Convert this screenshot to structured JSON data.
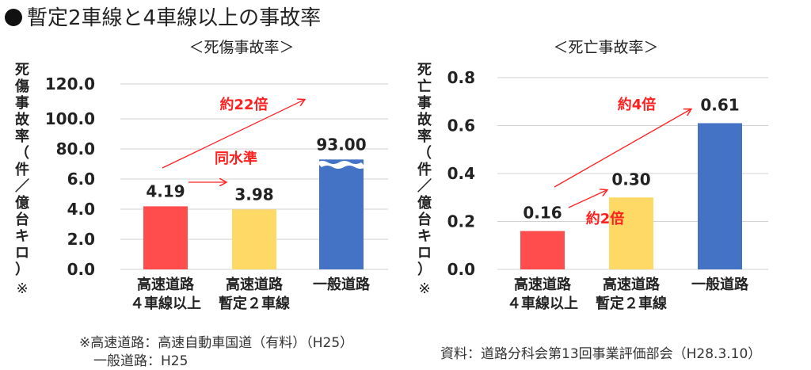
{
  "title": "暫定2車線と4車線以上の事故率",
  "footnote": {
    "line1": "※高速道路：高速自動車国道（有料）（H25）",
    "line2": "一般道路：H25"
  },
  "source": "資料：道路分科会第13回事業評価部会（H28.3.10）",
  "chart_data": [
    {
      "type": "bar",
      "title": "＜死傷事故率＞",
      "ylabel": "死傷事故率（件／億台キロ）",
      "ylabel_note": "※",
      "categories": [
        "高速道路\n４車線以上",
        "高速道路\n暫定２車線",
        "一般道路"
      ],
      "values": [
        4.19,
        3.98,
        93.0
      ],
      "data_labels": [
        "4.19",
        "3.98",
        "93.00"
      ],
      "colors": [
        "#ff4d4d",
        "#ffd966",
        "#4472c4"
      ],
      "yticks": [
        "0.0",
        "2.0",
        "4.0",
        "6.0",
        "80.0",
        "100.0",
        "120.0"
      ],
      "axis_break": true,
      "grid": true,
      "annotations": [
        {
          "text": "同水準",
          "from": "高速道路\n４車線以上",
          "to": "高速道路\n暫定２車線"
        },
        {
          "text": "約22倍",
          "from": "高速道路\n４車線以上",
          "to": "一般道路"
        }
      ]
    },
    {
      "type": "bar",
      "title": "＜死亡事故率＞",
      "ylabel": "死亡事故率（件／億台キロ）",
      "ylabel_note": "※",
      "categories": [
        "高速道路\n４車線以上",
        "高速道路\n暫定２車線",
        "一般道路"
      ],
      "values": [
        0.16,
        0.3,
        0.61
      ],
      "data_labels": [
        "0.16",
        "0.30",
        "0.61"
      ],
      "colors": [
        "#ff4d4d",
        "#ffd966",
        "#4472c4"
      ],
      "yticks": [
        "0.0",
        "0.2",
        "0.4",
        "0.6",
        "0.8"
      ],
      "ylim": [
        0,
        0.8
      ],
      "grid": true,
      "annotations": [
        {
          "text": "約2倍",
          "from": "高速道路\n４車線以上",
          "to": "高速道路\n暫定２車線"
        },
        {
          "text": "約4倍",
          "from": "高速道路\n４車線以上",
          "to": "一般道路"
        }
      ]
    }
  ]
}
